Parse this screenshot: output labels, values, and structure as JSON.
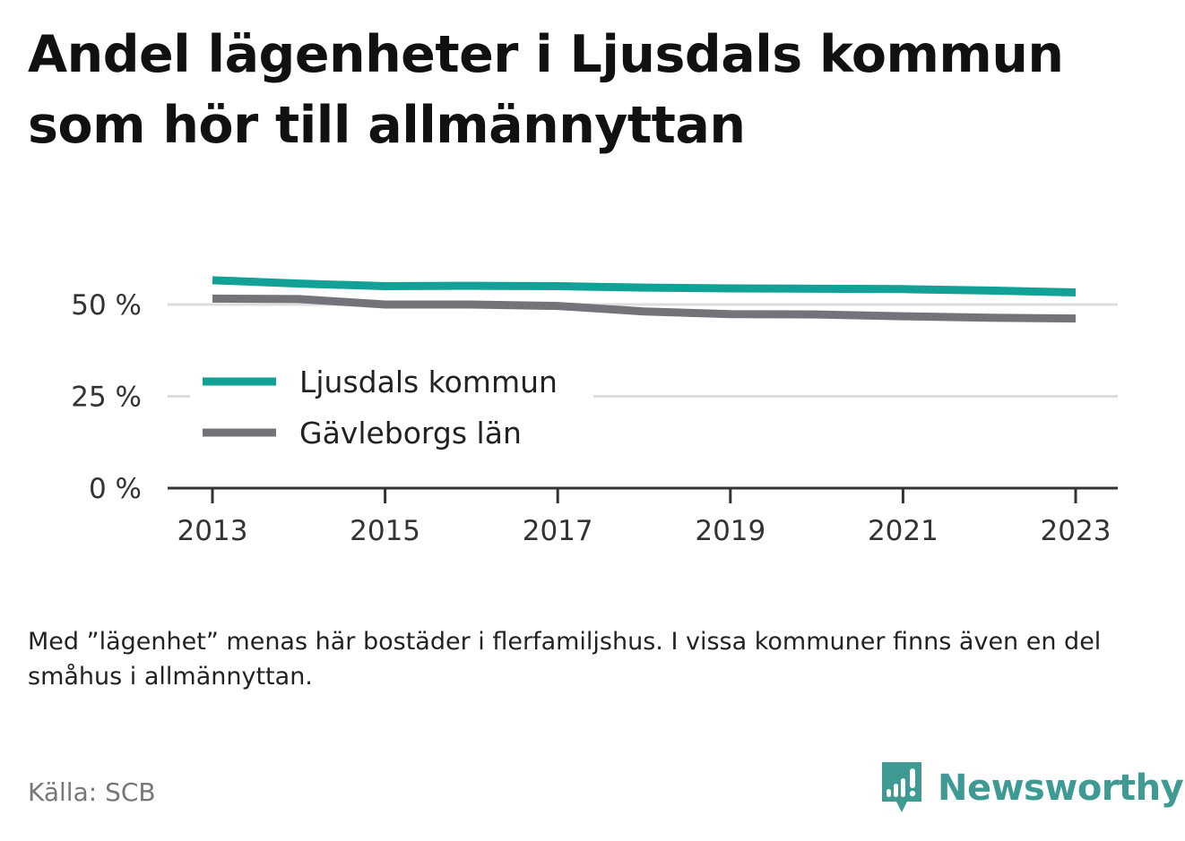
{
  "title": "Andel lägenheter i Ljusdals kommun som hör till allmännyttan",
  "note": "Med ”lägenhet” menas här bostäder i flerfamiljshus. I vissa kommuner finns även en del småhus i allmännyttan.",
  "source": "Källa: SCB",
  "brand": {
    "name": "Newsworthy",
    "icon": "newsworthy-logo-icon",
    "color": "#3e9a92"
  },
  "chart_data": {
    "type": "line",
    "title": "Andel lägenheter i Ljusdals kommun som hör till allmännyttan",
    "xlabel": "",
    "ylabel": "",
    "x": [
      2013,
      2014,
      2015,
      2016,
      2017,
      2018,
      2019,
      2020,
      2021,
      2022,
      2023
    ],
    "x_ticks": [
      "2013",
      "2015",
      "2017",
      "2019",
      "2021",
      "2023"
    ],
    "y_ticks": [
      "0 %",
      "25 %",
      "50 %"
    ],
    "y_tick_values": [
      0,
      25,
      50
    ],
    "ylim": [
      0,
      60
    ],
    "grid": true,
    "legend_position": "left-center",
    "series": [
      {
        "name": "Ljusdals kommun",
        "color": "#12a196",
        "values": [
          56.6,
          55.7,
          55.0,
          55.1,
          55.0,
          54.6,
          54.4,
          54.3,
          54.2,
          53.8,
          53.3
        ]
      },
      {
        "name": "Gävleborgs län",
        "color": "#74737a",
        "values": [
          51.6,
          51.5,
          50.0,
          50.0,
          49.6,
          48.1,
          47.4,
          47.3,
          46.8,
          46.4,
          46.2
        ]
      }
    ]
  }
}
